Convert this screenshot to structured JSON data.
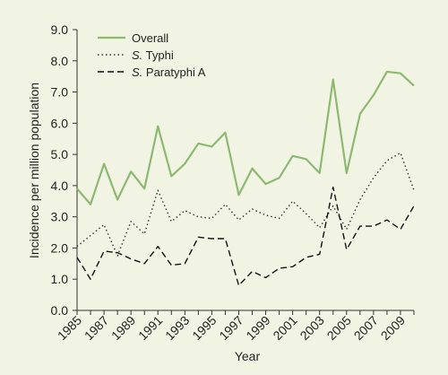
{
  "chart_data": {
    "type": "line",
    "xlabel": "Year",
    "ylabel": "Incidence per million population",
    "xlim": [
      1985,
      2010
    ],
    "ylim": [
      0,
      9
    ],
    "y_ticks": [
      "0.0",
      "1.0",
      "2.0",
      "3.0",
      "4.0",
      "5.0",
      "6.0",
      "7.0",
      "8.0",
      "9.0"
    ],
    "x_ticks": [
      "1985",
      "1987",
      "1989",
      "1991",
      "1993",
      "1995",
      "1997",
      "1999",
      "2001",
      "2003",
      "2005",
      "2007",
      "2009"
    ],
    "grid": false,
    "legend_position": "top-left",
    "x": [
      1985,
      1986,
      1987,
      1988,
      1989,
      1990,
      1991,
      1992,
      1993,
      1994,
      1995,
      1996,
      1997,
      1998,
      1999,
      2000,
      2001,
      2002,
      2003,
      2004,
      2005,
      2006,
      2007,
      2008,
      2009,
      2010
    ],
    "series": [
      {
        "name": "Overall",
        "italic_prefix": "",
        "name_rest": "Overall",
        "color": "#8db872",
        "dash": "solid",
        "values": [
          3.9,
          3.4,
          4.7,
          3.55,
          4.45,
          3.9,
          5.9,
          4.3,
          4.7,
          5.35,
          5.25,
          5.7,
          3.7,
          4.55,
          4.05,
          4.25,
          4.95,
          4.85,
          4.4,
          7.4,
          4.4,
          6.3,
          6.9,
          7.65,
          7.6,
          7.2
        ]
      },
      {
        "name": "S. Typhi",
        "italic_prefix": "S.",
        "name_rest": " Typhi",
        "color": "#333333",
        "dash": "dotted",
        "values": [
          2.05,
          2.4,
          2.75,
          1.75,
          2.85,
          2.45,
          3.85,
          2.85,
          3.2,
          3.0,
          2.95,
          3.4,
          2.9,
          3.25,
          3.05,
          2.95,
          3.5,
          3.1,
          2.65,
          3.35,
          2.6,
          3.55,
          4.25,
          4.8,
          5.05,
          3.85
        ]
      },
      {
        "name": "S. Paratyphi A",
        "italic_prefix": "S.",
        "name_rest": " Paratyphi A",
        "color": "#111111",
        "dash": "dashed",
        "values": [
          1.7,
          1.0,
          1.9,
          1.85,
          1.65,
          1.5,
          2.05,
          1.45,
          1.5,
          2.35,
          2.3,
          2.3,
          0.8,
          1.25,
          1.05,
          1.35,
          1.4,
          1.7,
          1.8,
          3.95,
          1.95,
          2.7,
          2.7,
          2.9,
          2.6,
          3.35
        ]
      }
    ]
  }
}
